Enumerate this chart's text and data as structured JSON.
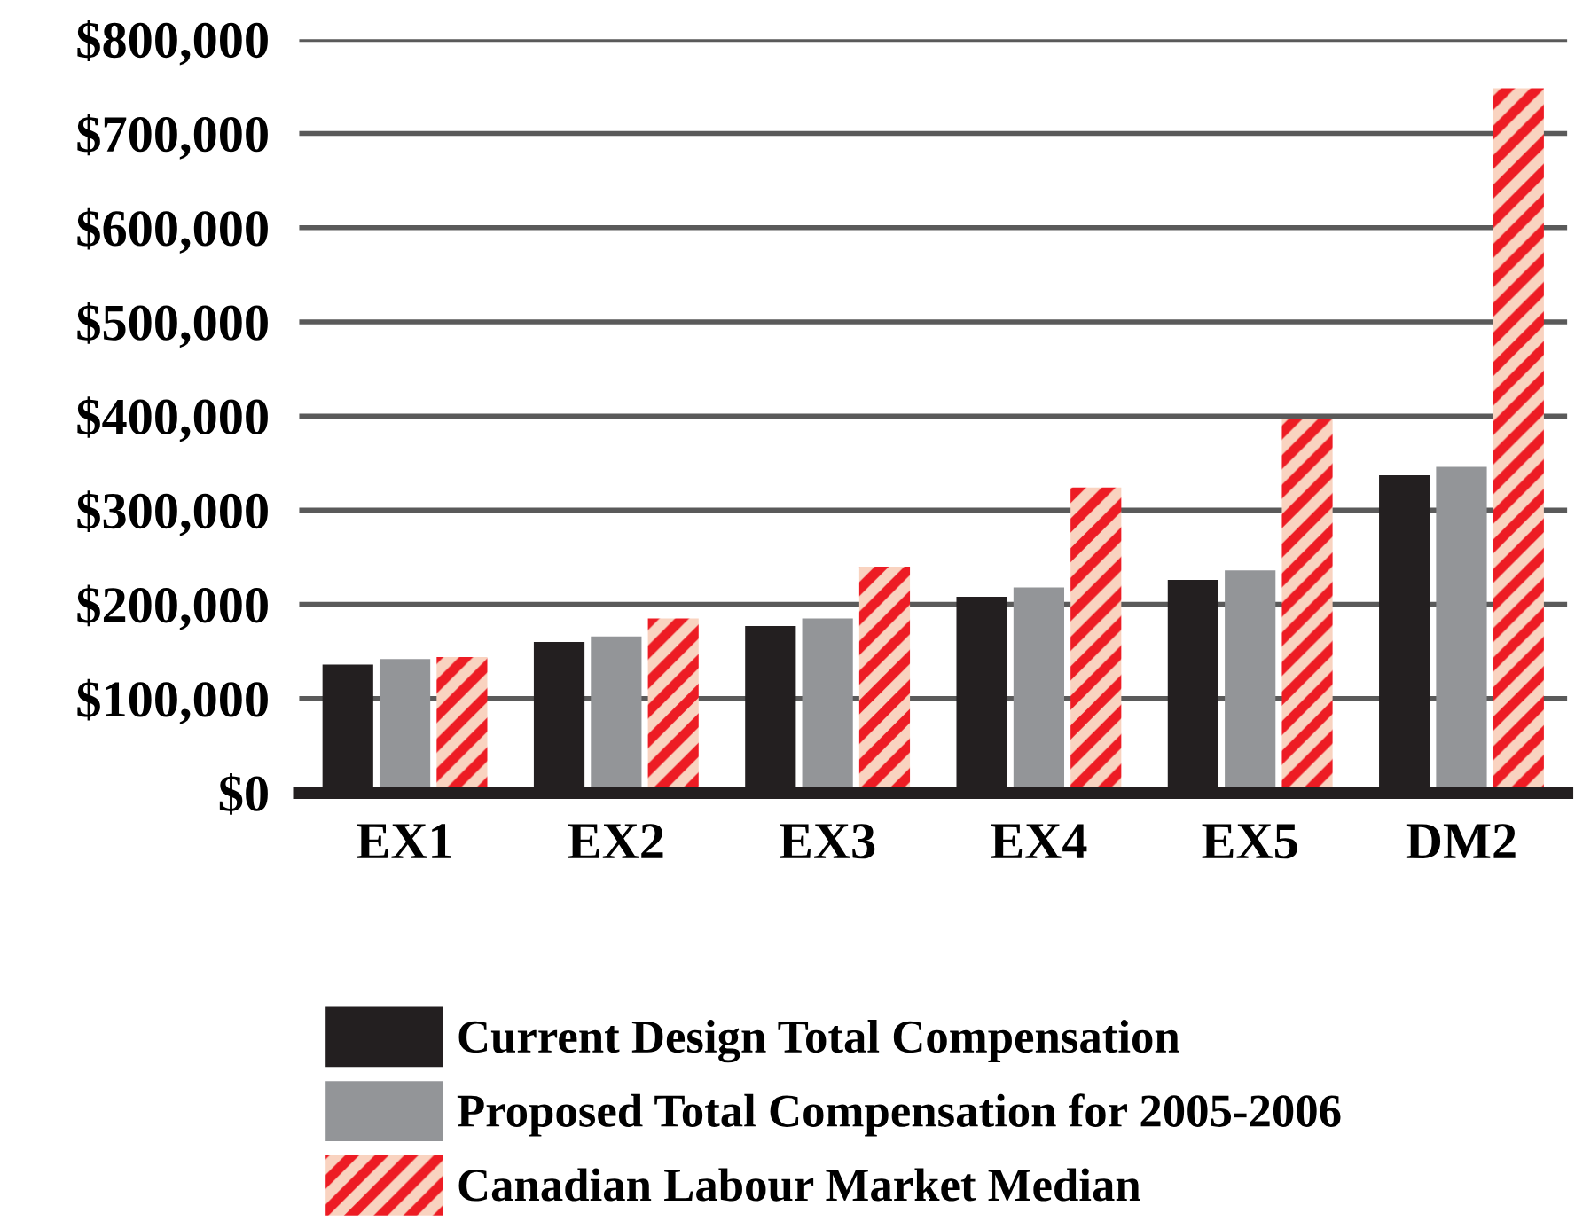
{
  "chart_data": {
    "type": "bar",
    "categories": [
      "EX1",
      "EX2",
      "EX3",
      "EX4",
      "EX5",
      "DM2"
    ],
    "series": [
      {
        "name": "Current Design Total Compensation",
        "color": "#231f20",
        "values": [
          136000,
          160000,
          177000,
          208000,
          226000,
          337000
        ]
      },
      {
        "name": "Proposed Total Compensation for 2005-2006",
        "color": "#939598",
        "values": [
          142000,
          166000,
          185000,
          218000,
          236000,
          346000
        ]
      },
      {
        "name": "Canadian Labour Market Median",
        "color": "#ed1c24",
        "values": [
          144000,
          185000,
          240000,
          324000,
          397000,
          748000
        ]
      }
    ],
    "ylim": [
      0,
      800000
    ],
    "yticks": [
      {
        "value": 0,
        "label": "$0"
      },
      {
        "value": 100000,
        "label": "$100,000"
      },
      {
        "value": 200000,
        "label": "$200,000"
      },
      {
        "value": 300000,
        "label": "$300,000"
      },
      {
        "value": 400000,
        "label": "$400,000"
      },
      {
        "value": 500000,
        "label": "$500,000"
      },
      {
        "value": 600000,
        "label": "$600,000"
      },
      {
        "value": 700000,
        "label": "$700,000"
      },
      {
        "value": 800000,
        "label": "$800,000"
      }
    ],
    "grid": "y",
    "legend": "bottom"
  }
}
